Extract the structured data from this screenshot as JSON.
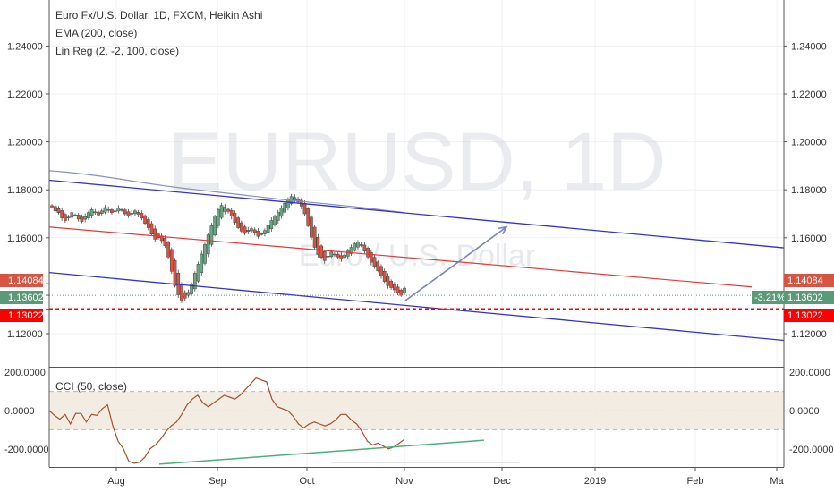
{
  "header": {
    "title": "Euro Fx/U.S. Dollar, 1D, FXCM, Heikin Ashi",
    "indicator_1": "EMA (200, close)",
    "indicator_2": "Lin Reg (2, -2, 100, close)"
  },
  "watermark": {
    "symbol": "EURUSD, 1D",
    "description": "Euro / U.S. Dollar"
  },
  "cci_panel": {
    "label": "CCI (50, close)"
  },
  "price_tags": {
    "upper_channel": "1.14084",
    "last_price": "1.13602",
    "support": "1.13022",
    "change_percent": "-3.21%"
  },
  "colors": {
    "bull": "#6ba583",
    "bear": "#d75442",
    "channel": "#3333cc",
    "midline": "#e53935",
    "ema": "#8a8fc0",
    "cci": "#a0522d",
    "divergence": "#4caf7a",
    "support_line": "#ff0000",
    "arrow": "#7b84b8"
  },
  "chart_data": [
    {
      "type": "candlestick",
      "title": "Euro Fx/U.S. Dollar, 1D, FXCM, Heikin Ashi",
      "x_tick_labels": [
        "Aug",
        "Sep",
        "Oct",
        "Nov",
        "Dec",
        "2019",
        "Feb",
        "Ma"
      ],
      "y_tick_labels": [
        "1.24000",
        "1.22000",
        "1.20000",
        "1.18000",
        "1.16000",
        "1.14084",
        "1.13602",
        "1.13022",
        "1.12000"
      ],
      "ylim": [
        1.1,
        1.255
      ],
      "grid": true,
      "axis_side": "both",
      "candles_close": [
        1.1728,
        1.1712,
        1.1705,
        1.1682,
        1.1671,
        1.1686,
        1.1705,
        1.1695,
        1.1678,
        1.1668,
        1.1688,
        1.1705,
        1.1718,
        1.1708,
        1.1695,
        1.1712,
        1.1726,
        1.1718,
        1.1705,
        1.1712,
        1.1724,
        1.1715,
        1.17,
        1.169,
        1.1702,
        1.1712,
        1.1698,
        1.1682,
        1.166,
        1.1642,
        1.1615,
        1.1594,
        1.16,
        1.1588,
        1.1567,
        1.152,
        1.146,
        1.14,
        1.1362,
        1.1336,
        1.1348,
        1.1372,
        1.1408,
        1.1452,
        1.149,
        1.1532,
        1.1572,
        1.1612,
        1.165,
        1.169,
        1.1718,
        1.1735,
        1.1728,
        1.171,
        1.169,
        1.1664,
        1.1642,
        1.1628,
        1.1618,
        1.1626,
        1.1638,
        1.1622,
        1.1606,
        1.1615,
        1.163,
        1.1652,
        1.1672,
        1.169,
        1.1706,
        1.1724,
        1.1744,
        1.176,
        1.1772,
        1.1768,
        1.175,
        1.1732,
        1.17,
        1.165,
        1.1602,
        1.156,
        1.153,
        1.1518,
        1.1505,
        1.152,
        1.154,
        1.1532,
        1.152,
        1.1512,
        1.1528,
        1.1545,
        1.156,
        1.1575,
        1.1582,
        1.1568,
        1.1544,
        1.152,
        1.1498,
        1.148,
        1.1462,
        1.144,
        1.1418,
        1.14,
        1.1392,
        1.1383,
        1.137,
        1.136,
        1.139
      ],
      "series": [
        {
          "name": "EMA (200, close)",
          "values": [
            1.188,
            1.1874,
            1.1866,
            1.1857,
            1.1847,
            1.1836,
            1.1825,
            1.1815,
            1.1806,
            1.1798,
            1.179,
            1.1782,
            1.1774,
            1.1766,
            1.1758,
            1.1751,
            1.1744,
            1.1737,
            1.173,
            1.1722,
            1.1713,
            1.1705
          ]
        },
        {
          "name": "Lin Reg (2, -2, 100, close) upper",
          "values": [
            1.184,
            1.1558
          ]
        },
        {
          "name": "Lin Reg (2, -2, 100, close) middle",
          "values": [
            1.1645,
            1.1395
          ]
        },
        {
          "name": "Lin Reg (2, -2, 100, close) lower",
          "values": [
            1.1455,
            1.1172
          ]
        },
        {
          "name": "projection arrow",
          "values": [
            1.1338,
            1.1645
          ]
        }
      ],
      "horizontal_lines": [
        1.13602,
        1.13022
      ]
    },
    {
      "type": "line",
      "title": "CCI (50, close)",
      "y_tick_labels": [
        "200.0000",
        "0.0000",
        "-200.0000"
      ],
      "ylim": [
        -280,
        250
      ],
      "band": [
        -100,
        100
      ],
      "values": [
        0,
        -25,
        -45,
        -20,
        -70,
        -15,
        -15,
        -60,
        -20,
        -25,
        10,
        30,
        -80,
        -160,
        -200,
        -265,
        -275,
        -270,
        -245,
        -200,
        -180,
        -150,
        -110,
        -80,
        -60,
        -20,
        30,
        60,
        80,
        40,
        20,
        40,
        60,
        80,
        70,
        60,
        80,
        110,
        140,
        170,
        160,
        150,
        60,
        20,
        10,
        0,
        -30,
        -70,
        -90,
        -70,
        -60,
        -70,
        -80,
        -70,
        -50,
        -20,
        -20,
        -50,
        -70,
        -110,
        -160,
        -180,
        -170,
        -185,
        -200,
        -190,
        -170,
        -150
      ],
      "divergence_line": [
        -280,
        -155
      ]
    }
  ]
}
